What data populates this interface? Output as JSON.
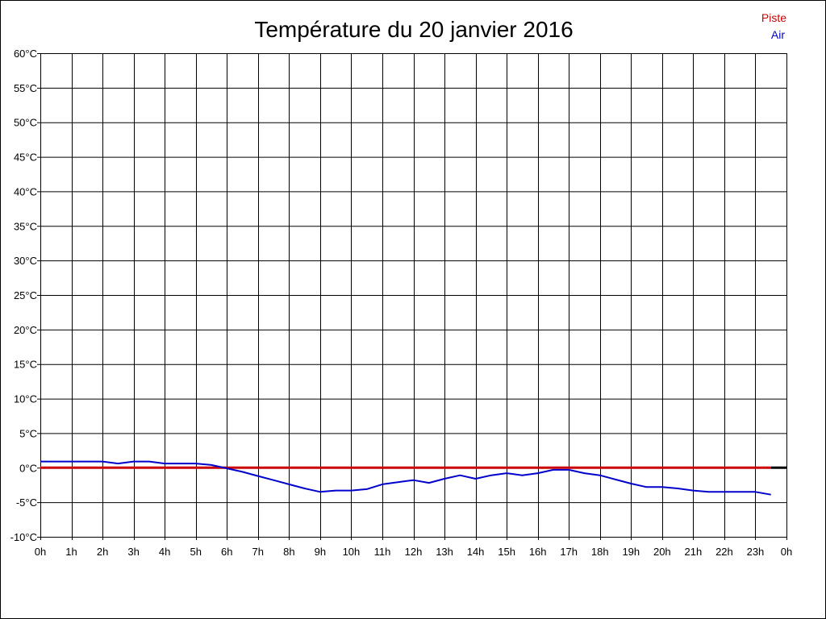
{
  "chart_data": {
    "type": "line",
    "title": "Température du 20 janvier 2016",
    "xlabel": "",
    "ylabel": "",
    "grid": true,
    "legend_position": "top-right",
    "xlim": [
      0,
      24
    ],
    "ylim": [
      -10,
      60
    ],
    "x_ticks": [
      "0h",
      "1h",
      "2h",
      "3h",
      "4h",
      "5h",
      "6h",
      "7h",
      "8h",
      "9h",
      "10h",
      "11h",
      "12h",
      "13h",
      "14h",
      "15h",
      "16h",
      "17h",
      "18h",
      "19h",
      "20h",
      "21h",
      "22h",
      "23h",
      "0h"
    ],
    "y_ticks": [
      "-10°C",
      "-5°C",
      "0°C",
      "5°C",
      "10°C",
      "15°C",
      "20°C",
      "25°C",
      "30°C",
      "35°C",
      "40°C",
      "45°C",
      "50°C",
      "55°C",
      "60°C"
    ],
    "series": [
      {
        "name": "Piste",
        "color": "#cc0000",
        "x": [
          0,
          0.5,
          1,
          1.5,
          2,
          2.5,
          3,
          3.5,
          4,
          4.5,
          5,
          5.5,
          6,
          6.5,
          7,
          7.5,
          8,
          8.5,
          9,
          9.5,
          10,
          10.5,
          11,
          11.5,
          12,
          12.5,
          13,
          13.5,
          14,
          14.5,
          15,
          15.5,
          16,
          16.5,
          17,
          17.5,
          18,
          18.5,
          19,
          19.5,
          20,
          20.5,
          21,
          21.5,
          22,
          22.5,
          23,
          23.5
        ],
        "y": [
          0,
          0,
          0,
          0,
          0,
          0,
          0,
          0,
          0,
          0,
          0,
          0,
          0,
          0,
          0,
          0,
          0,
          0,
          0,
          0,
          0,
          0,
          0,
          0,
          0,
          0,
          0,
          0,
          0,
          0,
          0,
          0,
          0,
          0,
          0,
          0,
          0,
          0,
          0,
          0,
          0,
          0,
          0,
          0,
          0,
          0,
          0,
          0
        ]
      },
      {
        "name": "Air",
        "color": "#0000cc",
        "x": [
          0,
          0.5,
          1,
          1.5,
          2,
          2.5,
          3,
          3.5,
          4,
          4.5,
          5,
          5.5,
          6,
          6.5,
          7,
          7.5,
          8,
          8.5,
          9,
          9.5,
          10,
          10.5,
          11,
          11.5,
          12,
          12.5,
          13,
          13.5,
          14,
          14.5,
          15,
          15.5,
          16,
          16.5,
          17,
          17.5,
          18,
          18.5,
          19,
          19.5,
          20,
          20.5,
          21,
          21.5,
          22,
          22.5,
          23,
          23.5
        ],
        "y": [
          0.9,
          0.9,
          0.9,
          0.9,
          0.9,
          0.6,
          0.9,
          0.9,
          0.6,
          0.6,
          0.6,
          0.4,
          -0.1,
          -0.6,
          -1.2,
          -1.8,
          -2.4,
          -3.0,
          -3.5,
          -3.3,
          -3.3,
          -3.1,
          -2.4,
          -2.1,
          -1.8,
          -2.2,
          -1.6,
          -1.1,
          -1.6,
          -1.1,
          -0.8,
          -1.1,
          -0.8,
          -0.3,
          -0.3,
          -0.8,
          -1.1,
          -1.7,
          -2.3,
          -2.8,
          -2.8,
          -3.0,
          -3.3,
          -3.5,
          -3.5,
          -3.5,
          -3.5,
          -3.9
        ]
      }
    ]
  }
}
